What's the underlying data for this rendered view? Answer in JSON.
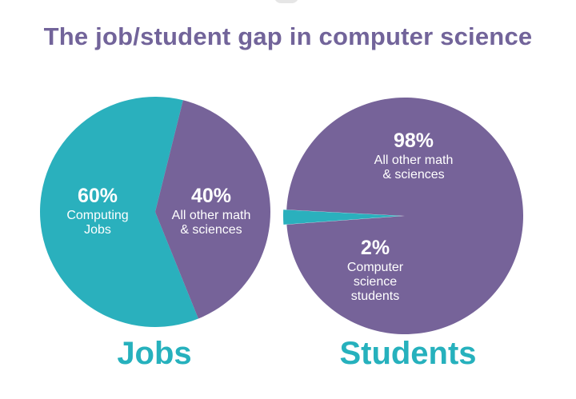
{
  "title": "The job/student gap in computer science",
  "colors": {
    "teal": "#2ab0bd",
    "purple": "#766399",
    "title": "#72649a",
    "caption": "#26b1bd"
  },
  "chart_data": [
    {
      "type": "pie",
      "caption": "Jobs",
      "slices": [
        {
          "value": 60,
          "pct_label": "60%",
          "label_lines": [
            "Computing",
            "Jobs"
          ],
          "color": "#2ab0bd"
        },
        {
          "value": 40,
          "pct_label": "40%",
          "label_lines": [
            "All other math",
            "& sciences"
          ],
          "color": "#766399"
        }
      ]
    },
    {
      "type": "pie",
      "caption": "Students",
      "slices": [
        {
          "value": 98,
          "pct_label": "98%",
          "label_lines": [
            "All other math",
            "& sciences"
          ],
          "color": "#766399"
        },
        {
          "value": 2,
          "pct_label": "2%",
          "label_lines": [
            "Computer",
            "science",
            "students"
          ],
          "color": "#2ab0bd"
        }
      ]
    }
  ]
}
